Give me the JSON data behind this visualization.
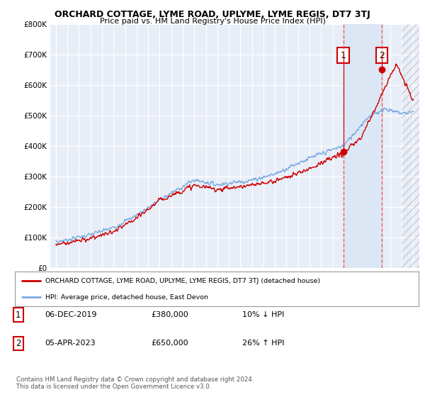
{
  "title": "ORCHARD COTTAGE, LYME ROAD, UPLYME, LYME REGIS, DT7 3TJ",
  "subtitle": "Price paid vs. HM Land Registry's House Price Index (HPI)",
  "ylim": [
    0,
    800000
  ],
  "yticks": [
    0,
    100000,
    200000,
    300000,
    400000,
    500000,
    600000,
    700000,
    800000
  ],
  "ytick_labels": [
    "£0",
    "£100K",
    "£200K",
    "£300K",
    "£400K",
    "£500K",
    "£600K",
    "£700K",
    "£800K"
  ],
  "hpi_color": "#7aaadd",
  "price_color": "#cc0000",
  "point1_x": 2019.92,
  "point1_y": 380000,
  "point2_x": 2023.27,
  "point2_y": 650000,
  "legend_line1": "ORCHARD COTTAGE, LYME ROAD, UPLYME, LYME REGIS, DT7 3TJ (detached house)",
  "legend_line2": "HPI: Average price, detached house, East Devon",
  "table_row1_num": "1",
  "table_row1_date": "06-DEC-2019",
  "table_row1_price": "£380,000",
  "table_row1_hpi": "10% ↓ HPI",
  "table_row2_num": "2",
  "table_row2_date": "05-APR-2023",
  "table_row2_price": "£650,000",
  "table_row2_hpi": "26% ↑ HPI",
  "footer": "Contains HM Land Registry data © Crown copyright and database right 2024.\nThis data is licensed under the Open Government Licence v3.0.",
  "bg_color": "#ffffff",
  "plot_bg_color": "#e8eef8",
  "grid_color": "#ffffff",
  "shade_color": "#dae6f5",
  "hatch_color": "#cccccc",
  "dashed_line_color": "#ee4444",
  "xlim_left": 1994.5,
  "xlim_right": 2026.5,
  "shade_start": 2019.92,
  "shade_end": 2023.27,
  "hatch_start": 2025.0
}
